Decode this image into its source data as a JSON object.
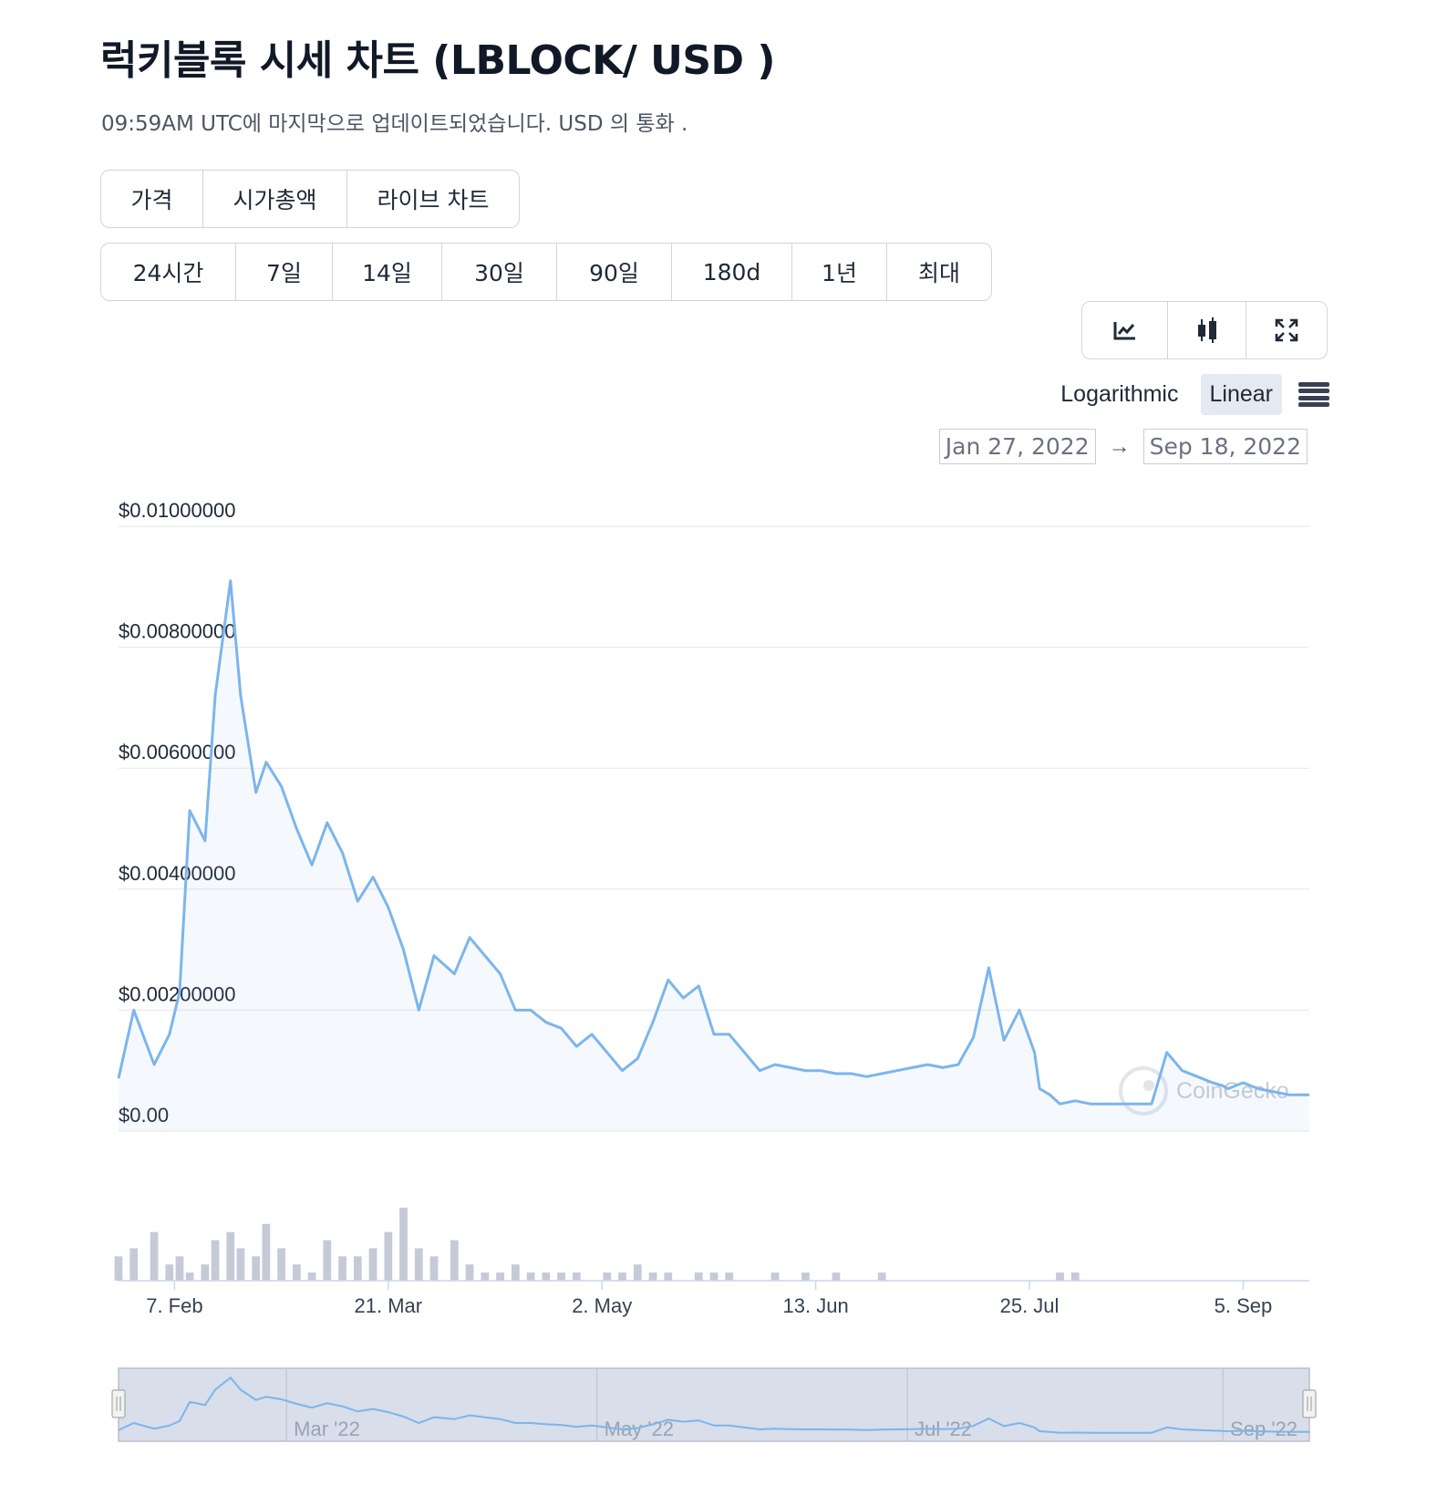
{
  "header": {
    "title": "럭키블록 시세 차트 (LBLOCK/ USD )",
    "subtitle": "09:59AM UTC에 마지막으로 업데이트되었습니다. USD 의 통화 ."
  },
  "tabs": [
    {
      "label": "가격",
      "active": true
    },
    {
      "label": "시가총액",
      "active": false
    },
    {
      "label": "라이브 차트",
      "active": false
    }
  ],
  "ranges": [
    {
      "label": "24시간",
      "active": false
    },
    {
      "label": "7일",
      "active": false
    },
    {
      "label": "14일",
      "active": false
    },
    {
      "label": "30일",
      "active": false
    },
    {
      "label": "90일",
      "active": false
    },
    {
      "label": "180d",
      "active": false
    },
    {
      "label": "1년",
      "active": true
    },
    {
      "label": "최대",
      "active": false
    }
  ],
  "chart_types": [
    {
      "icon": "line-chart-icon",
      "active": true
    },
    {
      "icon": "candlestick-icon",
      "active": false
    },
    {
      "icon": "expand-icon",
      "active": false
    }
  ],
  "scale": {
    "logarithmic": "Logarithmic",
    "linear": "Linear",
    "active": "linear"
  },
  "date_range": {
    "from": "Jan 27, 2022",
    "to": "Sep 18, 2022",
    "arrow": "→"
  },
  "watermark": "CoinGecko",
  "colors": {
    "line": "#7cb5ec",
    "grid": "#e6e6e6",
    "volume": "#c5cad6",
    "navigator_mask": "#d8deea",
    "active_button": "#e5e9f2"
  },
  "chart_data": {
    "type": "line",
    "series": [
      {
        "x": [
          "2022-01-27",
          "2022-01-30",
          "2022-02-03",
          "2022-02-06",
          "2022-02-08",
          "2022-02-10",
          "2022-02-13",
          "2022-02-15",
          "2022-02-18",
          "2022-02-20",
          "2022-02-23",
          "2022-02-25",
          "2022-02-28",
          "2022-03-03",
          "2022-03-06",
          "2022-03-09",
          "2022-03-12",
          "2022-03-15",
          "2022-03-18",
          "2022-03-21",
          "2022-03-24",
          "2022-03-27",
          "2022-03-30",
          "2022-04-03",
          "2022-04-06",
          "2022-04-09",
          "2022-04-12",
          "2022-04-15",
          "2022-04-18",
          "2022-04-21",
          "2022-04-24",
          "2022-04-27",
          "2022-04-30",
          "2022-05-03",
          "2022-05-06",
          "2022-05-09",
          "2022-05-12",
          "2022-05-15",
          "2022-05-18",
          "2022-05-21",
          "2022-05-24",
          "2022-05-27",
          "2022-05-30",
          "2022-06-02",
          "2022-06-05",
          "2022-06-08",
          "2022-06-11",
          "2022-06-14",
          "2022-06-17",
          "2022-06-20",
          "2022-06-23",
          "2022-06-26",
          "2022-06-29",
          "2022-07-02",
          "2022-07-05",
          "2022-07-08",
          "2022-07-11",
          "2022-07-14",
          "2022-07-17",
          "2022-07-20",
          "2022-07-23",
          "2022-07-26",
          "2022-07-27",
          "2022-07-29",
          "2022-07-31",
          "2022-08-03",
          "2022-08-06",
          "2022-08-09",
          "2022-08-12",
          "2022-08-15",
          "2022-08-18",
          "2022-08-21",
          "2022-08-24",
          "2022-08-27",
          "2022-08-30",
          "2022-09-01",
          "2022-09-02",
          "2022-09-05",
          "2022-09-08",
          "2022-09-11",
          "2022-09-14",
          "2022-09-18"
        ],
        "y": [
          0.00087,
          0.002,
          0.0011,
          0.0016,
          0.0023,
          0.0053,
          0.0048,
          0.0072,
          0.0091,
          0.0072,
          0.0056,
          0.0061,
          0.0057,
          0.005,
          0.0044,
          0.0051,
          0.0046,
          0.0038,
          0.0042,
          0.0037,
          0.003,
          0.002,
          0.0029,
          0.0026,
          0.0032,
          0.0029,
          0.0026,
          0.002,
          0.002,
          0.0018,
          0.0017,
          0.0014,
          0.0016,
          0.0013,
          0.001,
          0.0012,
          0.0018,
          0.0025,
          0.0022,
          0.0024,
          0.0016,
          0.0016,
          0.0013,
          0.001,
          0.0011,
          0.00105,
          0.001,
          0.001,
          0.00095,
          0.00095,
          0.0009,
          0.00095,
          0.001,
          0.00105,
          0.0011,
          0.00105,
          0.0011,
          0.00155,
          0.0027,
          0.0015,
          0.002,
          0.0013,
          0.0007,
          0.0006,
          0.00045,
          0.0005,
          0.00045,
          0.00045,
          0.00045,
          0.00045,
          0.00045,
          0.0013,
          0.001,
          0.0009,
          0.0008,
          0.00075,
          0.0007,
          0.0008,
          0.0007,
          0.00065,
          0.0006,
          0.0006
        ]
      }
    ],
    "volume": [
      3,
      4,
      6,
      2,
      3,
      1,
      2,
      5,
      6,
      4,
      3,
      7,
      4,
      2,
      1,
      5,
      3,
      3,
      4,
      6,
      9,
      4,
      3,
      5,
      2,
      1,
      1,
      2,
      1,
      1,
      1,
      1,
      0,
      1,
      1,
      2,
      1,
      1,
      0,
      1,
      1,
      1,
      0,
      0,
      1,
      0,
      1,
      0,
      1,
      0,
      0,
      1,
      0,
      0,
      0,
      0,
      0,
      0,
      0,
      0,
      0,
      0,
      0,
      0,
      1,
      1,
      0,
      0,
      0,
      0,
      0,
      0,
      0,
      0,
      0,
      0,
      0,
      0,
      0,
      0,
      0,
      0
    ],
    "ylim": [
      0,
      0.01
    ],
    "yticks": [
      "$0.00",
      "$0.00200000",
      "$0.00400000",
      "$0.00600000",
      "$0.00800000",
      "$0.01000000"
    ],
    "xticks": [
      "7. Feb",
      "21. Mar",
      "2. May",
      "13. Jun",
      "25. Jul",
      "5. Sep"
    ],
    "navigator_ticks": [
      "Mar '22",
      "May '22",
      "Jul '22",
      "Sep '22"
    ],
    "xlabel": "",
    "ylabel": "",
    "grid": true,
    "legend": "none"
  }
}
